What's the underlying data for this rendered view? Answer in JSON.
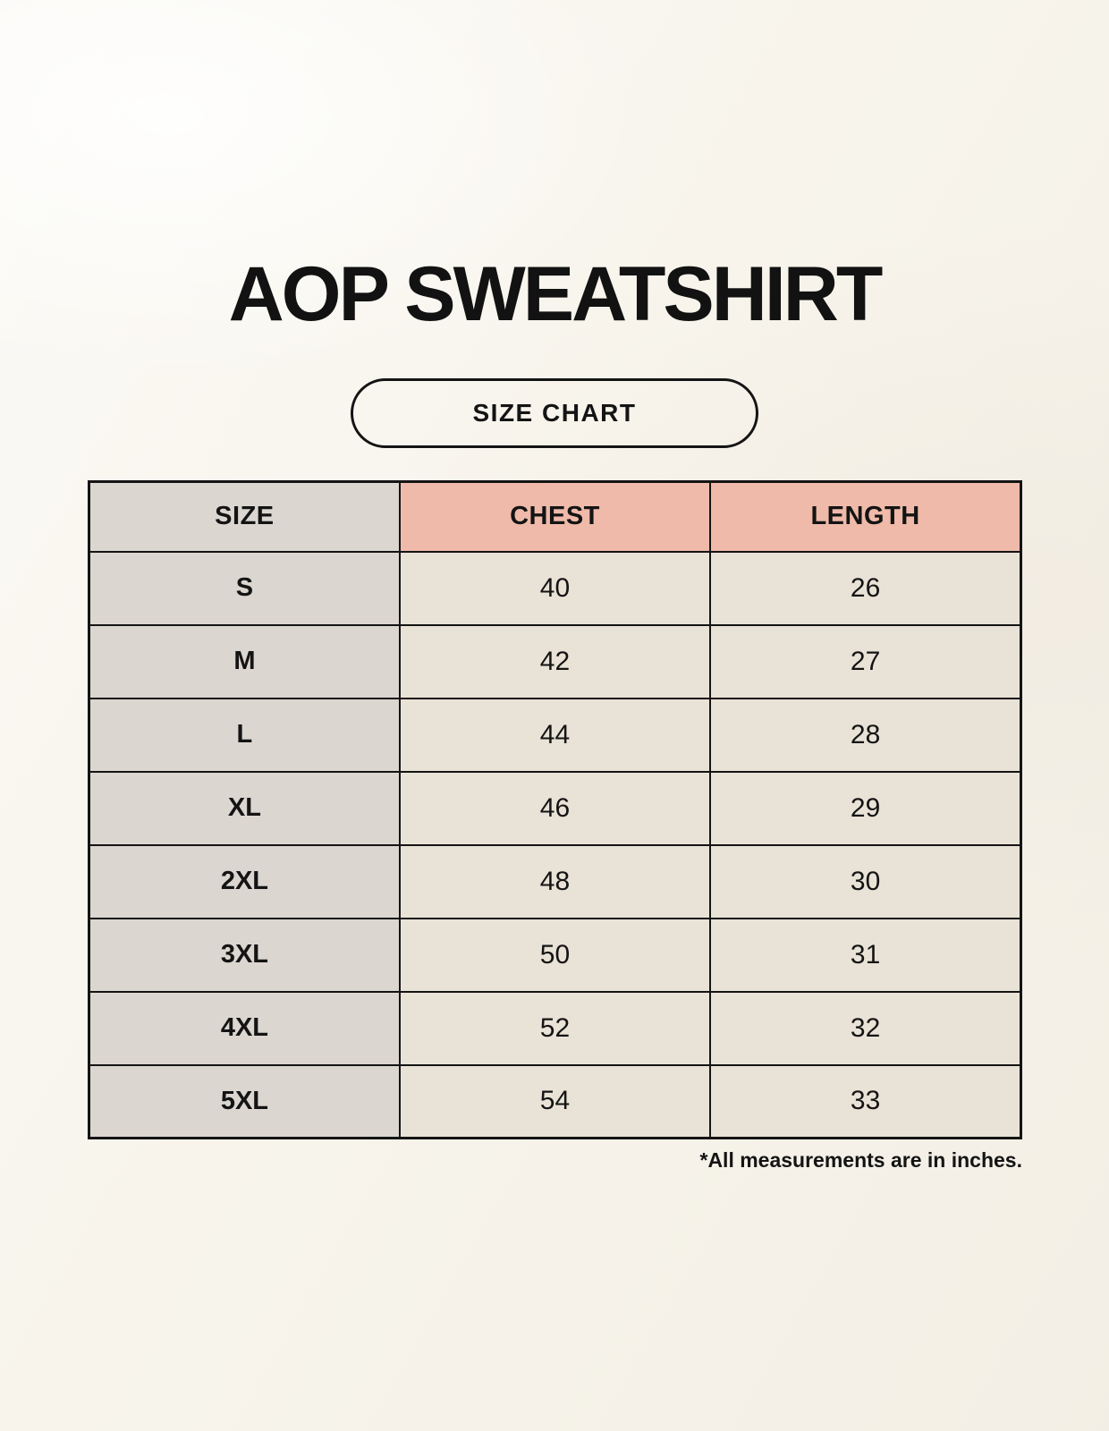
{
  "page": {
    "title": "AOP SWEATSHIRT",
    "badge_label": "SIZE CHART",
    "footnote": "*All measurements are in inches."
  },
  "colors": {
    "page_background": "#f8f5ed",
    "header_accent_fill": "#efbaa9",
    "size_column_fill": "#dcd6d0",
    "data_cell_fill": "#e9e2d6",
    "border": "#141414",
    "text": "#141414"
  },
  "table": {
    "columns": [
      "SIZE",
      "CHEST",
      "LENGTH"
    ],
    "rows": [
      {
        "size": "S",
        "chest": "40",
        "length": "26"
      },
      {
        "size": "M",
        "chest": "42",
        "length": "27"
      },
      {
        "size": "L",
        "chest": "44",
        "length": "28"
      },
      {
        "size": "XL",
        "chest": "46",
        "length": "29"
      },
      {
        "size": "2XL",
        "chest": "48",
        "length": "30"
      },
      {
        "size": "3XL",
        "chest": "50",
        "length": "31"
      },
      {
        "size": "4XL",
        "chest": "52",
        "length": "32"
      },
      {
        "size": "5XL",
        "chest": "54",
        "length": "33"
      }
    ],
    "units": "inches"
  }
}
